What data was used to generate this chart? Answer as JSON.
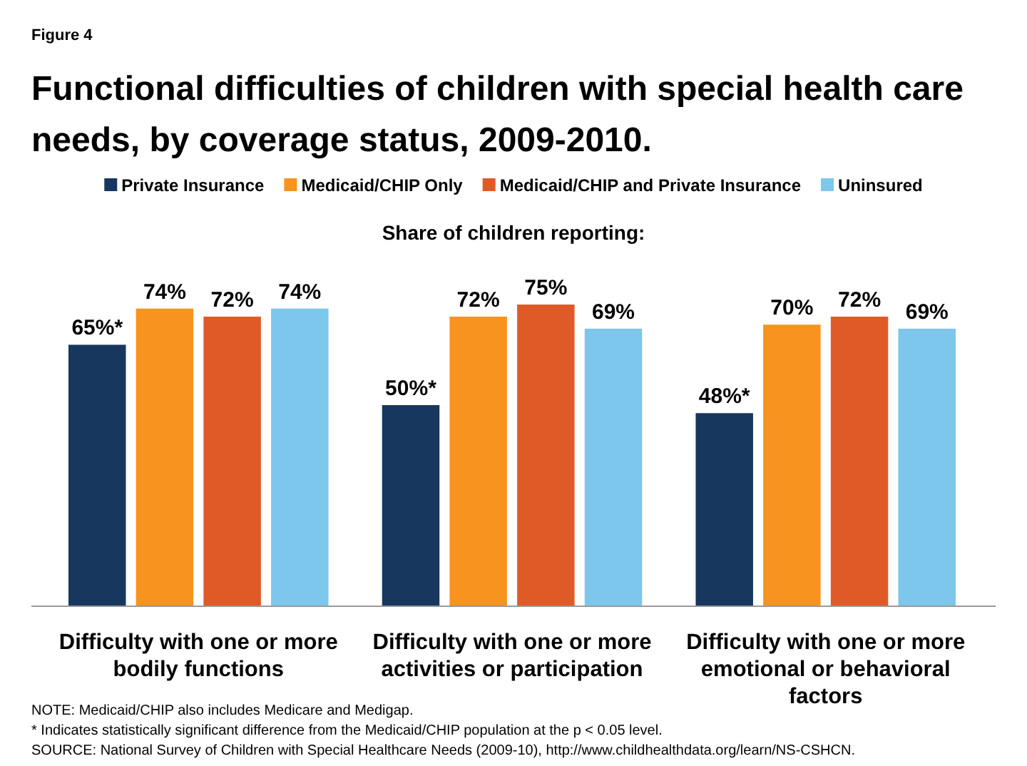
{
  "chart_data": {
    "type": "bar",
    "title": "Functional difficulties of children with special health care needs, by coverage status, 2009-2010.",
    "subtitle": "Share of children reporting:",
    "categories": [
      "Difficulty with one or more bodily functions",
      "Difficulty with one or more activities or participation",
      "Difficulty with one or more emotional or behavioral factors"
    ],
    "series": [
      {
        "name": "Private Insurance",
        "color": "#17375e",
        "values": [
          65,
          50,
          48
        ],
        "value_labels": [
          "65%*",
          "50%*",
          "48%*"
        ]
      },
      {
        "name": "Medicaid/CHIP Only",
        "color": "#f7931e",
        "values": [
          74,
          72,
          70
        ],
        "value_labels": [
          "74%",
          "72%",
          "70%"
        ]
      },
      {
        "name": "Medicaid/CHIP and Private Insurance",
        "color": "#e05a28",
        "values": [
          72,
          75,
          72
        ],
        "value_labels": [
          "72%",
          "75%",
          "72%"
        ]
      },
      {
        "name": "Uninsured",
        "color": "#7dc6ec",
        "values": [
          74,
          69,
          69
        ],
        "value_labels": [
          "74%",
          "69%",
          "69%"
        ]
      }
    ],
    "tick_labels": "x",
    "legend": "top",
    "annotations": [
      "Figure 4",
      "NOTE: Medicaid/CHIP also includes Medicare and Medigap.",
      "* Indicates statistically significant difference from the Medicaid/CHIP population at the p < 0.05 level.",
      "SOURCE: National Survey of Children with Special Healthcare Needs (2009-10), http://www.childhealthdata.org/learn/NS-CSHCN."
    ]
  }
}
